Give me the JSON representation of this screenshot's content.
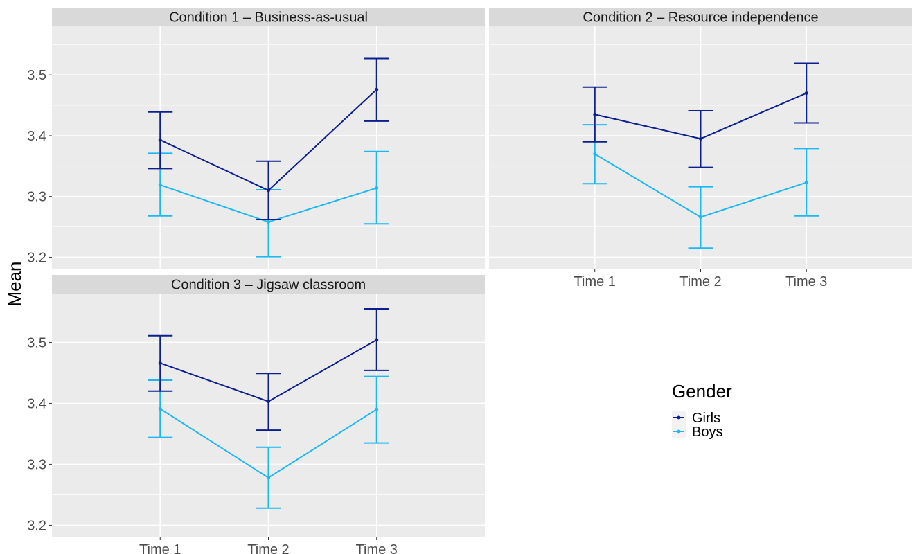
{
  "chart_data": {
    "type": "line",
    "ylabel": "Mean",
    "categories": [
      "Time 1",
      "Time 2",
      "Time 3"
    ],
    "ylim": [
      3.18,
      3.58
    ],
    "yticks": [
      3.2,
      3.3,
      3.4,
      3.5
    ],
    "grid": true,
    "legend": {
      "title": "Gender",
      "placement": "bottom-right",
      "entries": [
        {
          "name": "Girls",
          "color": "#0D1F8C"
        },
        {
          "name": "Boys",
          "color": "#1CB8F2"
        }
      ]
    },
    "panels": [
      {
        "title": "Condition 1 – Business-as-usual",
        "series": [
          {
            "name": "Girls",
            "values": [
              3.393,
              3.31,
              3.476
            ],
            "lower": [
              3.346,
              3.262,
              3.424
            ],
            "upper": [
              3.439,
              3.358,
              3.527
            ]
          },
          {
            "name": "Boys",
            "values": [
              3.319,
              3.258,
              3.314
            ],
            "lower": [
              3.268,
              3.201,
              3.255
            ],
            "upper": [
              3.371,
              3.311,
              3.374
            ]
          }
        ]
      },
      {
        "title": "Condition 2 – Resource independence",
        "series": [
          {
            "name": "Girls",
            "values": [
              3.435,
              3.395,
              3.47
            ],
            "lower": [
              3.39,
              3.348,
              3.421
            ],
            "upper": [
              3.48,
              3.441,
              3.519
            ]
          },
          {
            "name": "Boys",
            "values": [
              3.37,
              3.266,
              3.323
            ],
            "lower": [
              3.321,
              3.215,
              3.268
            ],
            "upper": [
              3.418,
              3.316,
              3.379
            ]
          }
        ]
      },
      {
        "title": "Condition 3 – Jigsaw classroom",
        "series": [
          {
            "name": "Girls",
            "values": [
              3.466,
              3.403,
              3.504
            ],
            "lower": [
              3.42,
              3.356,
              3.454
            ],
            "upper": [
              3.511,
              3.449,
              3.555
            ]
          },
          {
            "name": "Boys",
            "values": [
              3.391,
              3.278,
              3.39
            ],
            "lower": [
              3.344,
              3.228,
              3.335
            ],
            "upper": [
              3.438,
              3.328,
              3.444
            ]
          }
        ]
      }
    ]
  }
}
